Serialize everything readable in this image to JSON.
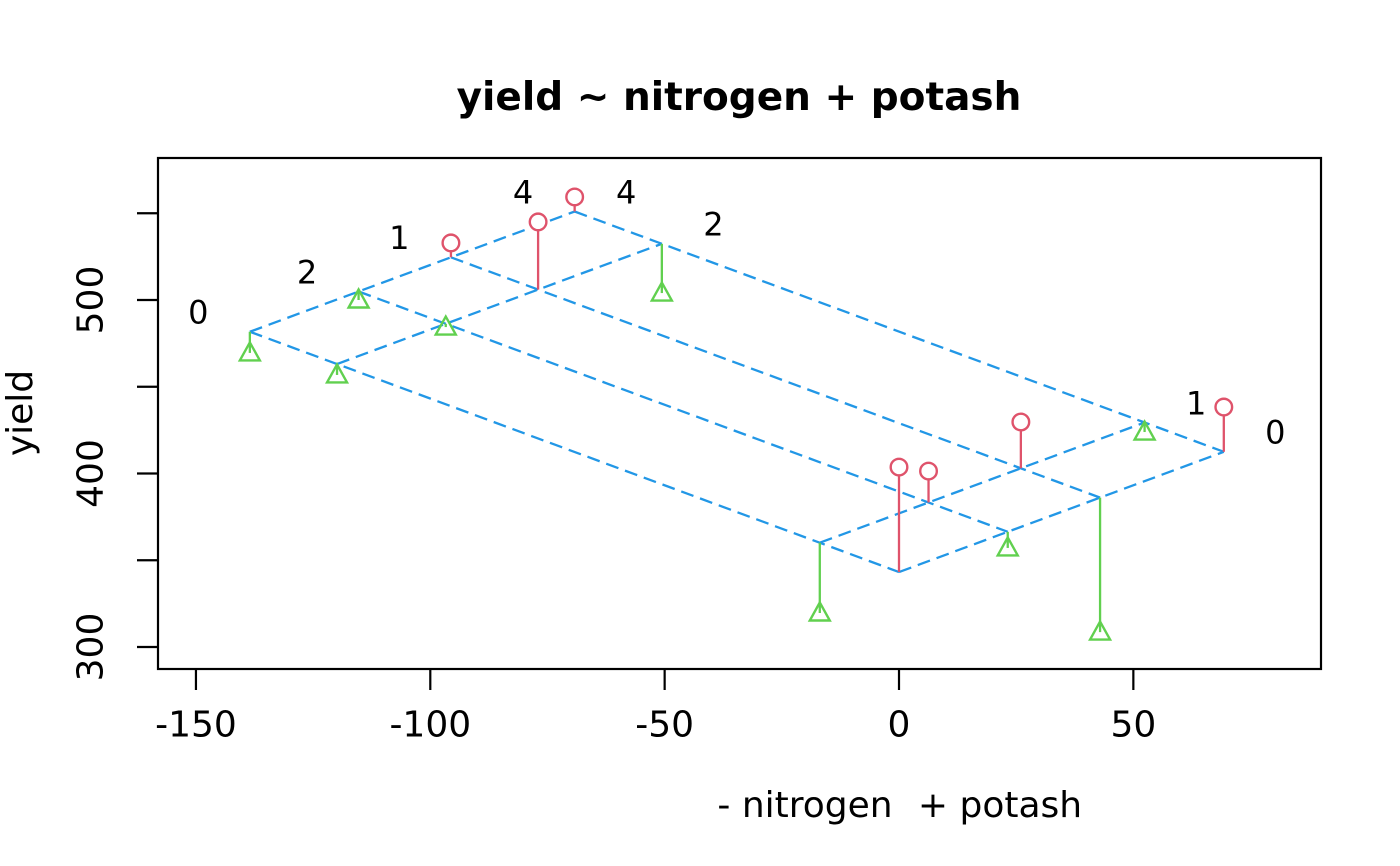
{
  "title": "yield ~ nitrogen + potash",
  "axes": {
    "x": {
      "label_parts": [
        "- nitrogen",
        "+ potash"
      ],
      "ticks": [
        -150,
        -100,
        -50,
        0,
        50
      ]
    },
    "y": {
      "label": "yield",
      "labeled_ticks": [
        300,
        400,
        500
      ],
      "unlabeled_ticks": [
        350,
        450,
        550
      ]
    }
  },
  "colors": {
    "lattice_blue": "#2297E6",
    "positive_red": "#DF536B",
    "negative_green": "#61D04F",
    "axis_black": "#000000",
    "background": "#FFFFFF"
  },
  "chart_data": {
    "type": "scatter",
    "subtype": "two-way additive fit lattice plot (observed points with residual stems)",
    "title": "yield ~ nitrogen + potash",
    "xlabel": "- nitrogen    + potash",
    "ylabel": "yield",
    "x_axis_ticks": [
      -150,
      -100,
      -50,
      0,
      50
    ],
    "y_axis_ticks": [
      300,
      400,
      500
    ],
    "grand_mean_mu": 343.2,
    "nitrogen_levels": [
      "0",
      "1",
      "2",
      "4"
    ],
    "nitrogen_effects": [
      0,
      16.9,
      119.9,
      138.5
    ],
    "potash_levels": [
      "0",
      "1",
      "2",
      "4"
    ],
    "potash_effects": [
      0,
      42.9,
      23.2,
      69.3
    ],
    "coordinate_rules": {
      "x": "potash_effect - nitrogen_effect",
      "fitted_y": "mu + nitrogen_effect + potash_effect"
    },
    "points": [
      {
        "nitrogen": "0",
        "potash": "0",
        "observed": 403.7,
        "fitted": 343.2,
        "marker": "circle-positive"
      },
      {
        "nitrogen": "0",
        "potash": "1",
        "observed": 308.6,
        "fitted": 386.1,
        "marker": "triangle-negative"
      },
      {
        "nitrogen": "0",
        "potash": "2",
        "observed": 357.1,
        "fitted": 366.4,
        "marker": "triangle-negative"
      },
      {
        "nitrogen": "0",
        "potash": "4",
        "observed": 438.3,
        "fitted": 412.5,
        "marker": "circle-positive"
      },
      {
        "nitrogen": "1",
        "potash": "0",
        "observed": 319.6,
        "fitted": 360.1,
        "marker": "triangle-negative"
      },
      {
        "nitrogen": "1",
        "potash": "1",
        "observed": 429.7,
        "fitted": 403.0,
        "marker": "circle-positive"
      },
      {
        "nitrogen": "1",
        "potash": "2",
        "observed": 401.4,
        "fitted": 383.3,
        "marker": "circle-positive"
      },
      {
        "nitrogen": "1",
        "potash": "4",
        "observed": 423.9,
        "fitted": 429.4,
        "marker": "triangle-negative"
      },
      {
        "nitrogen": "2",
        "potash": "0",
        "observed": 456.8,
        "fitted": 463.1,
        "marker": "triangle-negative"
      },
      {
        "nitrogen": "2",
        "potash": "1",
        "observed": 545.0,
        "fitted": 506.0,
        "marker": "circle-positive"
      },
      {
        "nitrogen": "2",
        "potash": "2",
        "observed": 484.4,
        "fitted": 486.3,
        "marker": "triangle-negative"
      },
      {
        "nitrogen": "2",
        "potash": "4",
        "observed": 504.0,
        "fitted": 532.4,
        "marker": "triangle-negative"
      },
      {
        "nitrogen": "4",
        "potash": "0",
        "observed": 469.5,
        "fitted": 481.7,
        "marker": "triangle-negative"
      },
      {
        "nitrogen": "4",
        "potash": "1",
        "observed": 532.9,
        "fitted": 524.6,
        "marker": "circle-positive"
      },
      {
        "nitrogen": "4",
        "potash": "2",
        "observed": 500.0,
        "fitted": 505.0,
        "marker": "triangle-negative"
      },
      {
        "nitrogen": "4",
        "potash": "4",
        "observed": 559.4,
        "fitted": 551.0,
        "marker": "circle-positive"
      }
    ]
  }
}
